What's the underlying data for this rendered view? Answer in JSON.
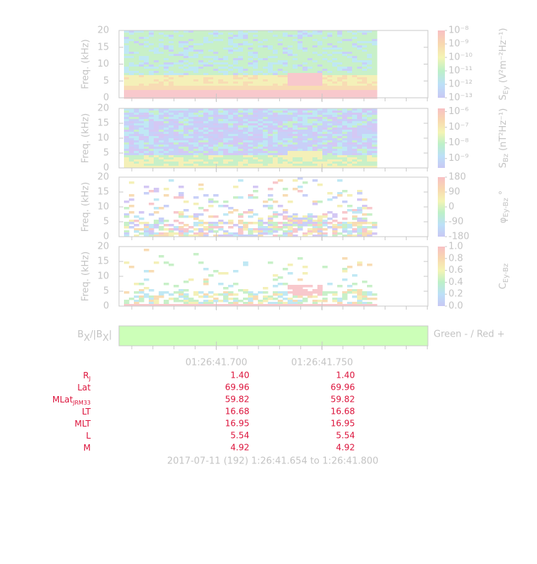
{
  "chart_data": [
    {
      "type": "heatmap",
      "ylabel": "Freq. (kHz)",
      "ylim": [
        0,
        20
      ],
      "yticks": [
        0,
        5,
        10,
        15,
        20
      ],
      "colorbar": {
        "symbol": "S",
        "subscript": "Ey",
        "unit": "(V²m⁻²Hz⁻¹)",
        "clim": [
          -13,
          -8
        ],
        "ticks": [
          {
            "value": -8,
            "label": "10⁻⁸"
          },
          {
            "value": -9,
            "label": "10⁻⁹"
          },
          {
            "value": -10,
            "label": "10⁻¹⁰"
          },
          {
            "value": -11,
            "label": "10⁻¹¹"
          },
          {
            "value": -12,
            "label": "10⁻¹²"
          },
          {
            "value": -13,
            "label": "10⁻¹³"
          }
        ]
      }
    },
    {
      "type": "heatmap",
      "ylabel": "Freq. (kHz)",
      "ylim": [
        0,
        20
      ],
      "yticks": [
        0,
        5,
        10,
        15,
        20
      ],
      "colorbar": {
        "symbol": "S",
        "subscript": "Bz",
        "unit": "(nT²Hz⁻¹)",
        "clim": [
          -9.6,
          -5.8
        ],
        "ticks": [
          {
            "value": -6,
            "label": "10⁻⁶"
          },
          {
            "value": -7,
            "label": "10⁻⁷"
          },
          {
            "value": -8,
            "label": "10⁻⁸"
          },
          {
            "value": -9,
            "label": "10⁻⁹"
          }
        ]
      }
    },
    {
      "type": "heatmap",
      "ylabel": "Freq. (kHz)",
      "ylim": [
        0,
        20
      ],
      "yticks": [
        0,
        5,
        10,
        15,
        20
      ],
      "colorbar": {
        "symbol": "φ",
        "subscript": "Ey-Bz",
        "unit": "°",
        "clim": [
          -180,
          180
        ],
        "ticks": [
          180,
          90,
          0,
          -90,
          -180
        ]
      }
    },
    {
      "type": "heatmap",
      "ylabel": "Freq. (kHz)",
      "ylim": [
        0,
        20
      ],
      "yticks": [
        0,
        5,
        10,
        15,
        20
      ],
      "colorbar": {
        "symbol": "C",
        "subscript": "Ey-Bz",
        "unit": "",
        "clim": [
          0,
          1
        ],
        "ticks": [
          {
            "value": 1,
            "label": "1.0"
          },
          0.8,
          0.6,
          0.4,
          0.2,
          {
            "value": 0,
            "label": "0.0"
          }
        ]
      }
    },
    {
      "type": "strip",
      "symbol": "B",
      "subscript": "X",
      "middle": "/|B",
      "subscript2": "X",
      "end": "|",
      "legend": "Green - / Red +",
      "color": "#ccffb8"
    }
  ],
  "time_axis": {
    "xlim": [
      41.654,
      41.8
    ],
    "xticks": [
      {
        "value": 41.7,
        "label": "01:26:41.700"
      },
      {
        "value": 41.75,
        "label": "01:26:41.750"
      }
    ]
  },
  "ephemeris": {
    "rows": [
      {
        "name": "R",
        "sub": "J",
        "values": [
          "1.40",
          "1.40"
        ]
      },
      {
        "name": "Lat",
        "sub": "",
        "values": [
          "69.96",
          "69.96"
        ]
      },
      {
        "name": "MLat",
        "sub": "JRM33",
        "values": [
          "59.82",
          "59.82"
        ]
      },
      {
        "name": "LT",
        "sub": "",
        "values": [
          "16.68",
          "16.68"
        ]
      },
      {
        "name": "MLT",
        "sub": "",
        "values": [
          "16.95",
          "16.95"
        ]
      },
      {
        "name": "L",
        "sub": "",
        "values": [
          "5.54",
          "5.54"
        ]
      },
      {
        "name": "M",
        "sub": "",
        "values": [
          "4.92",
          "4.92"
        ]
      }
    ]
  },
  "footer": "2017-07-11 (192) 1:26:41.654 to 1:26:41.800"
}
